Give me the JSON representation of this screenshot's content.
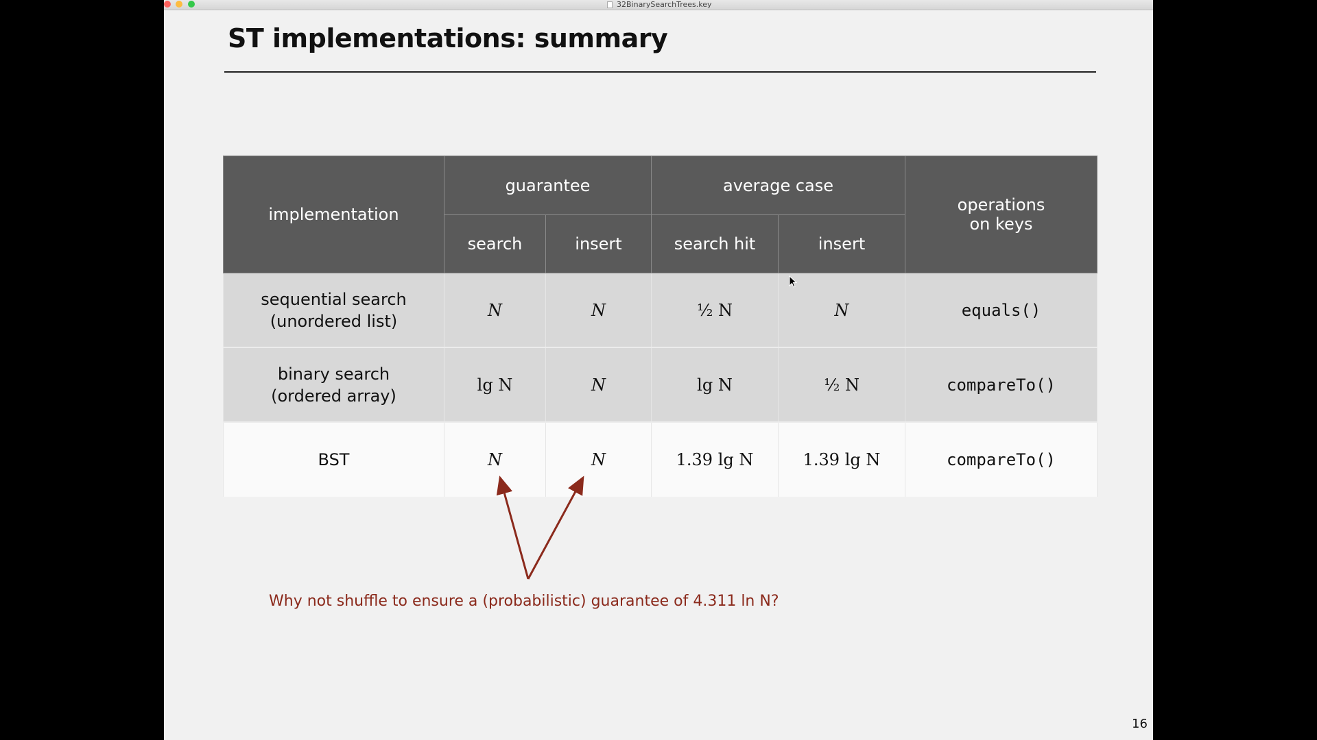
{
  "window": {
    "title": "32BinarySearchTrees.key"
  },
  "slide": {
    "title": "ST implementations:  summary",
    "page_number": "16",
    "annotation": "Why not shuffle to ensure a (probabilistic) guarantee of 4.311 ln N?",
    "annotation_color": "#8b2a1c",
    "header_color": "#5a5a5a"
  },
  "table": {
    "headers": {
      "implementation": "implementation",
      "guarantee": "guarantee",
      "average_case": "average case",
      "operations_line1": "operations",
      "operations_line2": "on keys",
      "search": "search",
      "insert": "insert",
      "search_hit": "search hit",
      "insert_avg": "insert"
    },
    "rows": [
      {
        "impl_line1": "sequential search",
        "impl_line2": "(unordered list)",
        "guarantee_search": "N",
        "guarantee_insert": "N",
        "avg_search_hit": "½ N",
        "avg_insert": "N",
        "operations": "equals()"
      },
      {
        "impl_line1": "binary search",
        "impl_line2": "(ordered array)",
        "guarantee_search": "lg N",
        "guarantee_insert": "N",
        "avg_search_hit": "lg N",
        "avg_insert": "½ N",
        "operations": "compareTo()"
      },
      {
        "impl_line1": "BST",
        "impl_line2": "",
        "guarantee_search": "N",
        "guarantee_insert": "N",
        "avg_search_hit": "1.39 lg N",
        "avg_insert": "1.39 lg N",
        "operations": "compareTo()"
      }
    ]
  }
}
